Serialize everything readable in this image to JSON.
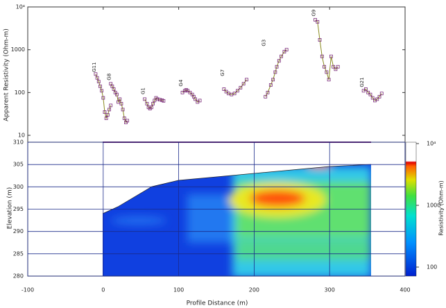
{
  "chart_data": [
    {
      "type": "line",
      "y_label": "Apparent Resistivity (Ohm-m)",
      "log_y": true,
      "xlim": [
        -100,
        400
      ],
      "xticks": [
        -100,
        0,
        100,
        200,
        300,
        400
      ],
      "ylim": [
        6.9,
        10000
      ],
      "yticks": [
        10,
        100,
        1000,
        {
          "value": 10000,
          "label": "10⁴"
        }
      ],
      "line_color": "#8a8a20",
      "series": [
        {
          "name": "G11",
          "color": "#7a2a7a",
          "x": [
            -10,
            -8,
            -6,
            -4,
            -2,
            0,
            2,
            4,
            6,
            8,
            10
          ],
          "values": [
            270,
            220,
            180,
            140,
            110,
            75,
            35,
            25,
            30,
            40,
            50
          ]
        },
        {
          "name": "G8",
          "color": "#7a2a7a",
          "x": [
            10,
            12,
            14,
            16,
            18,
            20,
            22,
            24,
            26,
            28,
            30,
            32
          ],
          "values": [
            160,
            140,
            120,
            100,
            90,
            60,
            70,
            55,
            40,
            25,
            20,
            22
          ]
        },
        {
          "name": "G1",
          "color": "#7a2a7a",
          "x": [
            55,
            58,
            60,
            62,
            64,
            66,
            68,
            70,
            72,
            75,
            78,
            80
          ],
          "values": [
            70,
            55,
            45,
            42,
            45,
            55,
            65,
            75,
            70,
            68,
            66,
            64
          ]
        },
        {
          "name": "G4",
          "color": "#7a2a7a",
          "x": [
            105,
            108,
            110,
            112,
            115,
            118,
            120,
            122,
            125,
            128
          ],
          "values": [
            100,
            110,
            115,
            110,
            100,
            90,
            80,
            70,
            60,
            65
          ]
        },
        {
          "name": "G7",
          "color": "#7a2a7a",
          "x": [
            160,
            163,
            166,
            170,
            174,
            178,
            182,
            186,
            190
          ],
          "values": [
            120,
            105,
            95,
            90,
            95,
            110,
            130,
            160,
            200
          ]
        },
        {
          "name": "G3",
          "color": "#7a2a7a",
          "x": [
            215,
            218,
            222,
            225,
            228,
            230,
            233,
            236,
            240,
            243
          ],
          "values": [
            80,
            100,
            150,
            200,
            300,
            400,
            550,
            700,
            900,
            1000
          ]
        },
        {
          "name": "G9",
          "color": "#7a2a7a",
          "x": [
            281,
            284,
            287,
            290,
            293,
            296,
            299,
            302,
            305,
            308,
            311
          ],
          "values": [
            5000,
            4500,
            1700,
            700,
            400,
            300,
            200,
            700,
            400,
            350,
            400
          ]
        },
        {
          "name": "G21",
          "color": "#7a2a7a",
          "x": [
            345,
            348,
            351,
            354,
            357,
            360,
            363,
            366,
            369
          ],
          "values": [
            110,
            120,
            100,
            90,
            75,
            65,
            70,
            80,
            95
          ]
        }
      ]
    },
    {
      "type": "contour",
      "x_label": "Profile Distance (m)",
      "y_label": "Elevation (m)",
      "xlim": [
        -100,
        400
      ],
      "xticks": [
        -100,
        0,
        100,
        200,
        300,
        400
      ],
      "ylim": [
        280,
        310
      ],
      "yticks": [
        310,
        305,
        300,
        295,
        290,
        285,
        280
      ],
      "grid": true,
      "colorbar": {
        "label": "Resistivity (Ohm-m)",
        "ticks": [
          {
            "value": 10000,
            "label": "10⁴"
          },
          1000,
          100
        ]
      }
    }
  ]
}
